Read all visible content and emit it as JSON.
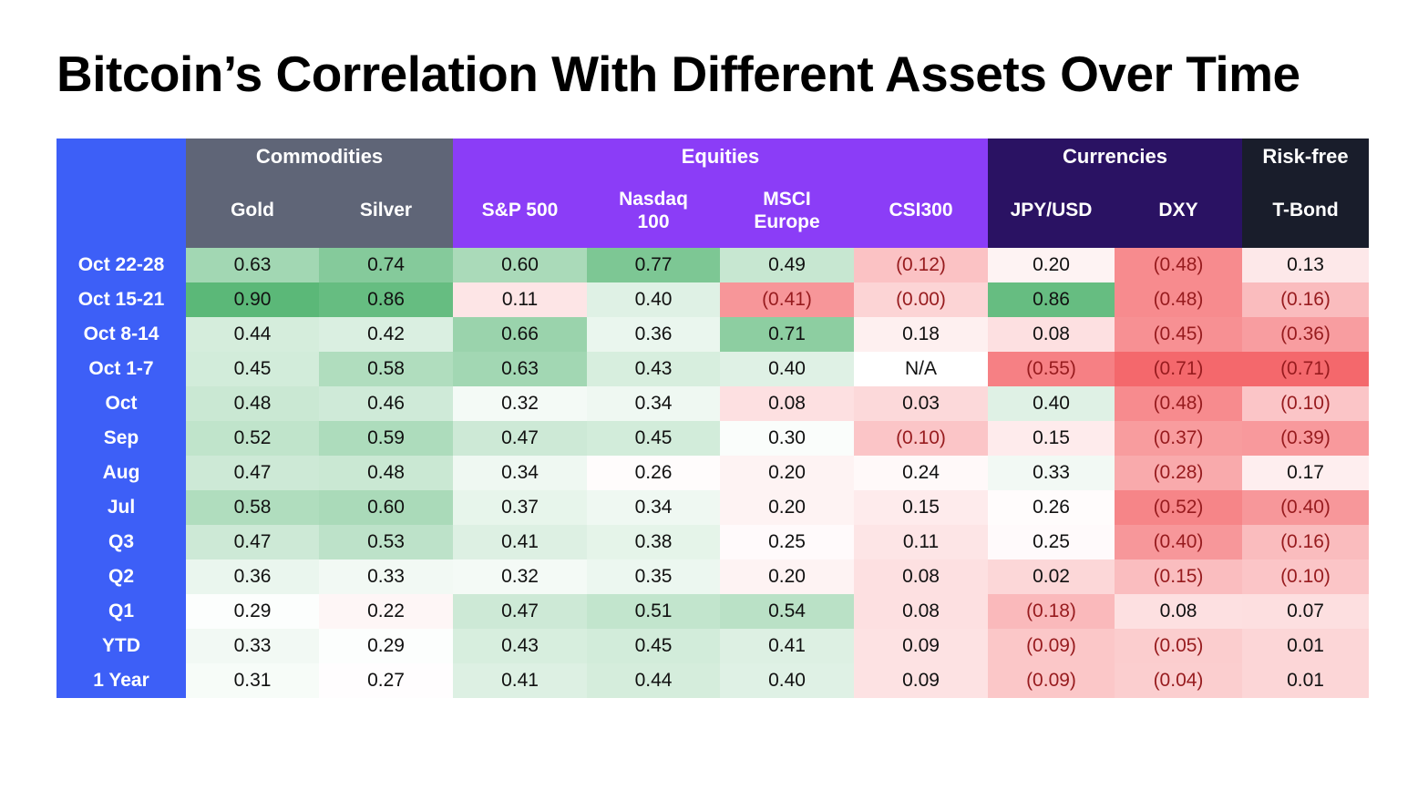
{
  "title": "Bitcoin’s Correlation With Different Assets Over Time",
  "na_label": "N/A",
  "colors": {
    "row_header_bg": "#3D5FF7",
    "header_text": "#FFFFFF",
    "title_text": "#000000",
    "value_positive_text": "#111111",
    "value_negative_text": "#971B1E",
    "scale_positive": "#5BB878",
    "scale_negative": "#F4686C",
    "scale_na": "#FFFFFF"
  },
  "scale": {
    "min": -0.71,
    "mid": 0.28,
    "max": 0.9
  },
  "chart_data": {
    "type": "heatmap",
    "title": "Bitcoin’s Correlation With Different Assets Over Time",
    "legend_position": "none",
    "grid": false,
    "column_groups": [
      {
        "label": "Commodities",
        "bg": "#5F6577",
        "columns": [
          "Gold",
          "Silver"
        ]
      },
      {
        "label": "Equities",
        "bg": "#8B3DF7",
        "columns": [
          "S&P 500",
          "Nasdaq 100",
          "MSCI Europe",
          "CSI300"
        ]
      },
      {
        "label": "Currencies",
        "bg": "#2A1263",
        "columns": [
          "JPY/USD",
          "DXY"
        ]
      },
      {
        "label": "Risk-free",
        "bg": "#191D2B",
        "columns": [
          "T-Bond"
        ]
      }
    ],
    "columns": [
      "Gold",
      "Silver",
      "S&P 500",
      "Nasdaq 100",
      "MSCI Europe",
      "CSI300",
      "JPY/USD",
      "DXY",
      "T-Bond"
    ],
    "rows": [
      {
        "label": "Oct 22-28",
        "values": [
          0.63,
          0.74,
          0.6,
          0.77,
          0.49,
          -0.12,
          0.2,
          -0.48,
          0.13
        ]
      },
      {
        "label": "Oct 15-21",
        "values": [
          0.9,
          0.86,
          0.11,
          0.4,
          -0.41,
          -0.0,
          0.86,
          -0.48,
          -0.16
        ]
      },
      {
        "label": "Oct 8-14",
        "values": [
          0.44,
          0.42,
          0.66,
          0.36,
          0.71,
          0.18,
          0.08,
          -0.45,
          -0.36
        ]
      },
      {
        "label": "Oct 1-7",
        "values": [
          0.45,
          0.58,
          0.63,
          0.43,
          0.4,
          null,
          -0.55,
          -0.71,
          -0.71
        ]
      },
      {
        "label": "Oct",
        "values": [
          0.48,
          0.46,
          0.32,
          0.34,
          0.08,
          0.03,
          0.4,
          -0.48,
          -0.1
        ]
      },
      {
        "label": "Sep",
        "values": [
          0.52,
          0.59,
          0.47,
          0.45,
          0.3,
          -0.1,
          0.15,
          -0.37,
          -0.39
        ]
      },
      {
        "label": "Aug",
        "values": [
          0.47,
          0.48,
          0.34,
          0.26,
          0.2,
          0.24,
          0.33,
          -0.28,
          0.17
        ]
      },
      {
        "label": "Jul",
        "values": [
          0.58,
          0.6,
          0.37,
          0.34,
          0.2,
          0.15,
          0.26,
          -0.52,
          -0.4
        ]
      },
      {
        "label": "Q3",
        "values": [
          0.47,
          0.53,
          0.41,
          0.38,
          0.25,
          0.11,
          0.25,
          -0.4,
          -0.16
        ]
      },
      {
        "label": "Q2",
        "values": [
          0.36,
          0.33,
          0.32,
          0.35,
          0.2,
          0.08,
          0.02,
          -0.15,
          -0.1
        ]
      },
      {
        "label": "Q1",
        "values": [
          0.29,
          0.22,
          0.47,
          0.51,
          0.54,
          0.08,
          -0.18,
          0.08,
          0.07
        ]
      },
      {
        "label": "YTD",
        "values": [
          0.33,
          0.29,
          0.43,
          0.45,
          0.41,
          0.09,
          -0.09,
          -0.05,
          0.01
        ]
      },
      {
        "label": "1 Year",
        "values": [
          0.31,
          0.27,
          0.41,
          0.44,
          0.4,
          0.09,
          -0.09,
          -0.04,
          0.01
        ]
      }
    ]
  }
}
